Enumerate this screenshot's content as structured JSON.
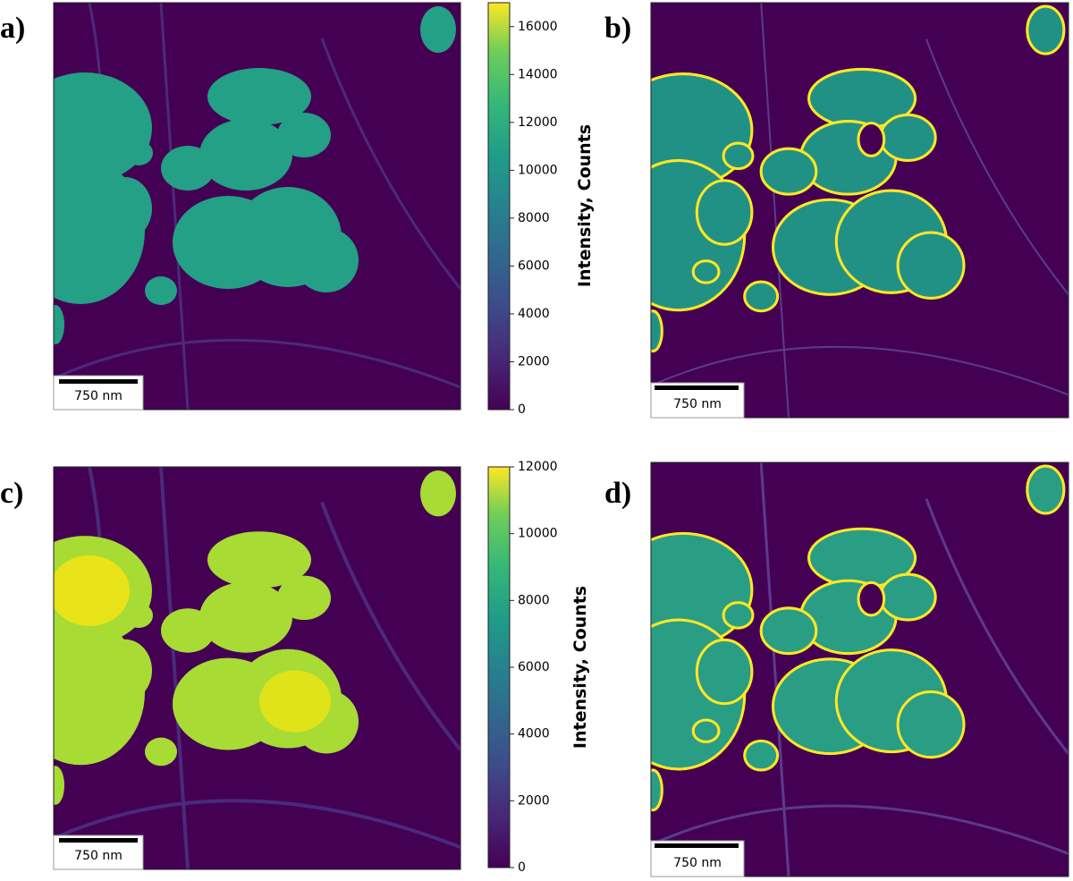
{
  "panels": [
    {
      "label": "a)",
      "scale_bar": "750 nm"
    },
    {
      "label": "b)",
      "scale_bar": "750 nm"
    },
    {
      "label": "c)",
      "scale_bar": "750 nm"
    },
    {
      "label": "d)",
      "scale_bar": "750 nm"
    }
  ],
  "colorbars": [
    {
      "label": "Intensity, Counts",
      "range": [
        0,
        17000
      ],
      "ticks": [
        0,
        2000,
        4000,
        6000,
        8000,
        10000,
        12000,
        14000,
        16000
      ]
    },
    {
      "label": "Intensity, Counts",
      "range": [
        0,
        12000
      ],
      "ticks": [
        0,
        2000,
        4000,
        6000,
        8000,
        10000,
        12000
      ]
    }
  ]
}
